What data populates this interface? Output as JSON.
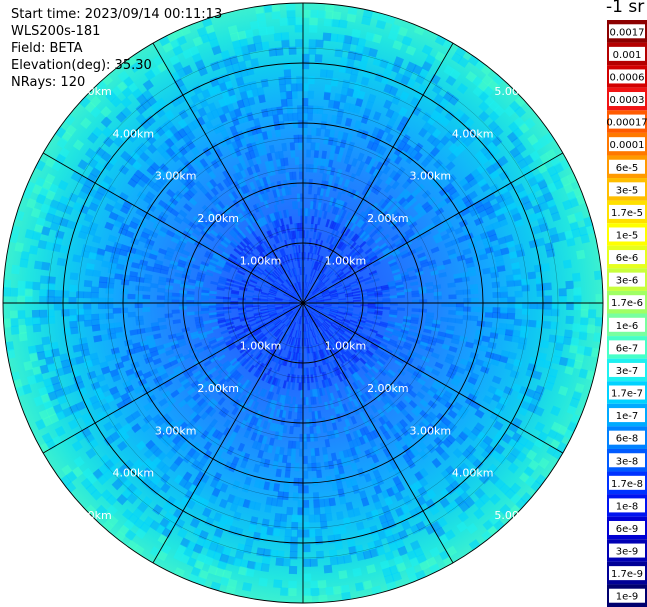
{
  "info": {
    "start_time": "Start time: 2023/09/14 00:11:13",
    "device": "WLS200s-181",
    "field": "Field: BETA",
    "elevation": "Elevation(deg): 35.30",
    "nrays": "NRays: 120"
  },
  "unit_label": "-1 sr",
  "chart_data": {
    "type": "heatmap",
    "subtype": "ppi-polar",
    "field": "BETA",
    "range_rings_km": [
      1,
      2,
      3,
      4,
      5
    ],
    "range_labels": [
      "1.00km",
      "2.00km",
      "3.00km",
      "4.00km",
      "5.00km"
    ],
    "max_range_km": 5,
    "nrays": 120,
    "radial_spokes_deg": [
      0,
      30,
      60,
      90,
      120,
      150,
      180,
      210,
      240,
      270,
      300,
      330
    ],
    "colorscale": {
      "labels": [
        "0.0017",
        "0.001",
        "0.0006",
        "0.0003",
        "0.00017",
        "0.0001",
        "6e-5",
        "3e-5",
        "1.7e-5",
        "1e-5",
        "6e-6",
        "3e-6",
        "1.7e-6",
        "1e-6",
        "6e-7",
        "3e-7",
        "1.7e-7",
        "1e-7",
        "6e-8",
        "3e-8",
        "1.7e-8",
        "1e-8",
        "6e-9",
        "3e-9",
        "1.7e-9",
        "1e-9"
      ],
      "colors": [
        "#8c0000",
        "#b40000",
        "#d20000",
        "#f01414",
        "#ff5a00",
        "#ff7800",
        "#ff9a00",
        "#ffbe00",
        "#ffe000",
        "#ffff00",
        "#e6ff1e",
        "#c8ff3c",
        "#a0ff64",
        "#78ffa0",
        "#46ffc8",
        "#1ef0f0",
        "#00d2ff",
        "#00aaff",
        "#0082ff",
        "#005aff",
        "#0032ff",
        "#0014f0",
        "#0000d2",
        "#0000b4",
        "#000096",
        "#00006e"
      ]
    },
    "typical_value_by_range_km": [
      {
        "range_km": 1,
        "value": "1.7e-8"
      },
      {
        "range_km": 2,
        "value": "6e-8"
      },
      {
        "range_km": 3,
        "value": "6e-8"
      },
      {
        "range_km": 4,
        "value": "1e-7"
      },
      {
        "range_km": 5,
        "value": "3e-7"
      }
    ]
  }
}
